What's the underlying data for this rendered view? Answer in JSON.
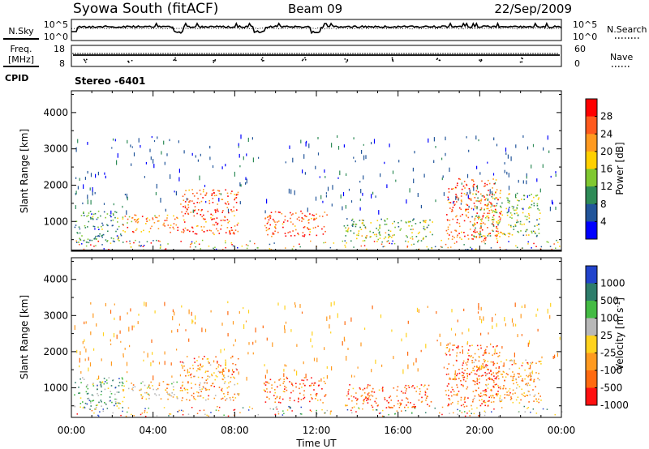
{
  "header": {
    "station": "Syowa South (fitACF)",
    "beam": "Beam 09",
    "date": "22/Sep/2009"
  },
  "panels": {
    "nsky": {
      "left_label": "N.Sky",
      "left_ticks": [
        "10^5",
        "10^0"
      ],
      "right_label": "N.Search",
      "right_ticks": [
        "10^5",
        "10^0"
      ]
    },
    "freq": {
      "left_label_line1": "Freq.",
      "left_label_line2": "[MHz]",
      "left_ticks": [
        "18",
        "8"
      ],
      "right_label": "Nave",
      "right_ticks": [
        "60",
        "0"
      ]
    },
    "cpid": {
      "label": "CPID",
      "value": "Stereo -6401"
    }
  },
  "chart_data": [
    {
      "type": "heatmap",
      "id": "power",
      "ylabel": "Slant Range [km]",
      "yticks": [
        1000,
        2000,
        3000,
        4000
      ],
      "ylim": [
        180,
        4600
      ],
      "xlim": [
        0,
        24
      ],
      "x_tick_labels": [
        "00:00",
        "04:00",
        "08:00",
        "12:00",
        "16:00",
        "20:00",
        "00:00"
      ],
      "colorbar": {
        "label": "Power [dB]",
        "ticks": [
          "28",
          "24",
          "20",
          "16",
          "12",
          "8",
          "4"
        ],
        "colors": [
          "#ff0000",
          "#ff5a1e",
          "#ff9a20",
          "#ffd000",
          "#80c830",
          "#2e8b57",
          "#22559a",
          "#0000ff"
        ]
      },
      "echo_regions": [
        {
          "t0": 0.1,
          "t1": 2.5,
          "r0": 420,
          "r1": 1300,
          "level": 5
        },
        {
          "t0": 2.5,
          "t1": 5.2,
          "r0": 700,
          "r1": 1200,
          "level": 2
        },
        {
          "t0": 5.3,
          "t1": 8.2,
          "r0": 650,
          "r1": 1900,
          "level": 1
        },
        {
          "t0": 9.4,
          "t1": 12.5,
          "r0": 600,
          "r1": 1300,
          "level": 1
        },
        {
          "t0": 13.3,
          "t1": 17.7,
          "r0": 450,
          "r1": 1100,
          "level": 4
        },
        {
          "t0": 18.3,
          "t1": 21.0,
          "r0": 500,
          "r1": 2200,
          "level": 1
        },
        {
          "t0": 19.6,
          "t1": 23.0,
          "r0": 600,
          "r1": 1800,
          "level": 4
        }
      ]
    },
    {
      "type": "heatmap",
      "id": "velocity",
      "ylabel": "Slant Range [km]",
      "yticks": [
        1000,
        2000,
        3000,
        4000
      ],
      "ylim": [
        180,
        4600
      ],
      "xlim": [
        0,
        24
      ],
      "xlabel": "Time UT",
      "x_tick_labels": [
        "00:00",
        "04:00",
        "08:00",
        "12:00",
        "16:00",
        "20:00",
        "00:00"
      ],
      "colorbar": {
        "label": "Velocity [m s",
        "label_sup": "-1",
        "label_end": "]",
        "ticks": [
          "1000",
          "500",
          "100",
          "25",
          "-25",
          "-100",
          "-500",
          "-1000"
        ],
        "colors": [
          "#2244cc",
          "#2e7d6b",
          "#44bb44",
          "#b8b8b8",
          "#ffd21e",
          "#ff9a20",
          "#ff6a10",
          "#ff1010"
        ]
      },
      "echo_regions": [
        {
          "t0": 0.1,
          "t1": 2.5,
          "r0": 420,
          "r1": 1300,
          "level": 2
        },
        {
          "t0": 2.5,
          "t1": 5.2,
          "r0": 700,
          "r1": 1200,
          "level": 4
        },
        {
          "t0": 5.3,
          "t1": 8.2,
          "r0": 650,
          "r1": 1900,
          "level": 5
        },
        {
          "t0": 9.4,
          "t1": 12.5,
          "r0": 600,
          "r1": 1300,
          "level": 6
        },
        {
          "t0": 13.3,
          "t1": 17.7,
          "r0": 450,
          "r1": 1100,
          "level": 6
        },
        {
          "t0": 18.3,
          "t1": 21.0,
          "r0": 500,
          "r1": 2200,
          "level": 6
        },
        {
          "t0": 19.6,
          "t1": 23.0,
          "r0": 600,
          "r1": 1800,
          "level": 5
        }
      ]
    }
  ]
}
